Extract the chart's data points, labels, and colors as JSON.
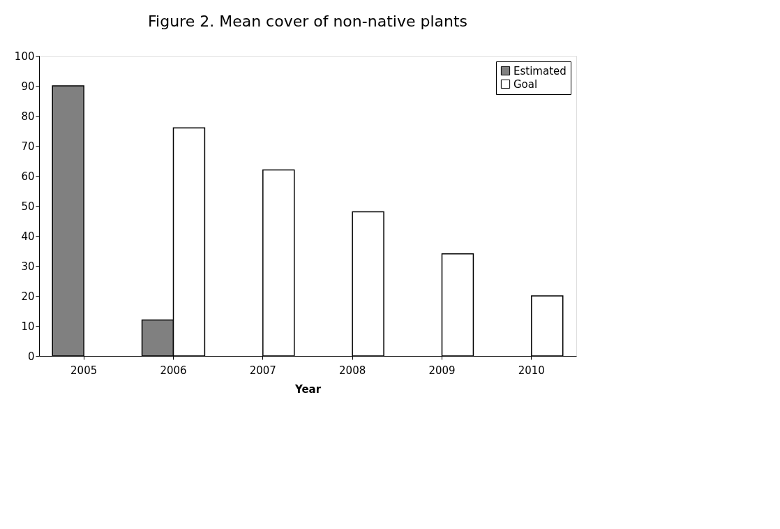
{
  "chart_data": {
    "type": "bar",
    "title": "Figure 2.  Mean cover of non-native plants",
    "xlabel": "Year",
    "categories": [
      "2005",
      "2006",
      "2007",
      "2008",
      "2009",
      "2010"
    ],
    "series": [
      {
        "name": "Estimated",
        "color": "#808080",
        "values": [
          90,
          12,
          null,
          null,
          null,
          null
        ]
      },
      {
        "name": "Goal",
        "color": "#ffffff",
        "values": [
          null,
          76,
          62,
          48,
          34,
          20
        ]
      }
    ],
    "ylim": [
      0,
      100
    ],
    "yticks": [
      0,
      10,
      20,
      30,
      40,
      50,
      60,
      70,
      80,
      90,
      100
    ],
    "grid": false,
    "legend": "top right"
  }
}
